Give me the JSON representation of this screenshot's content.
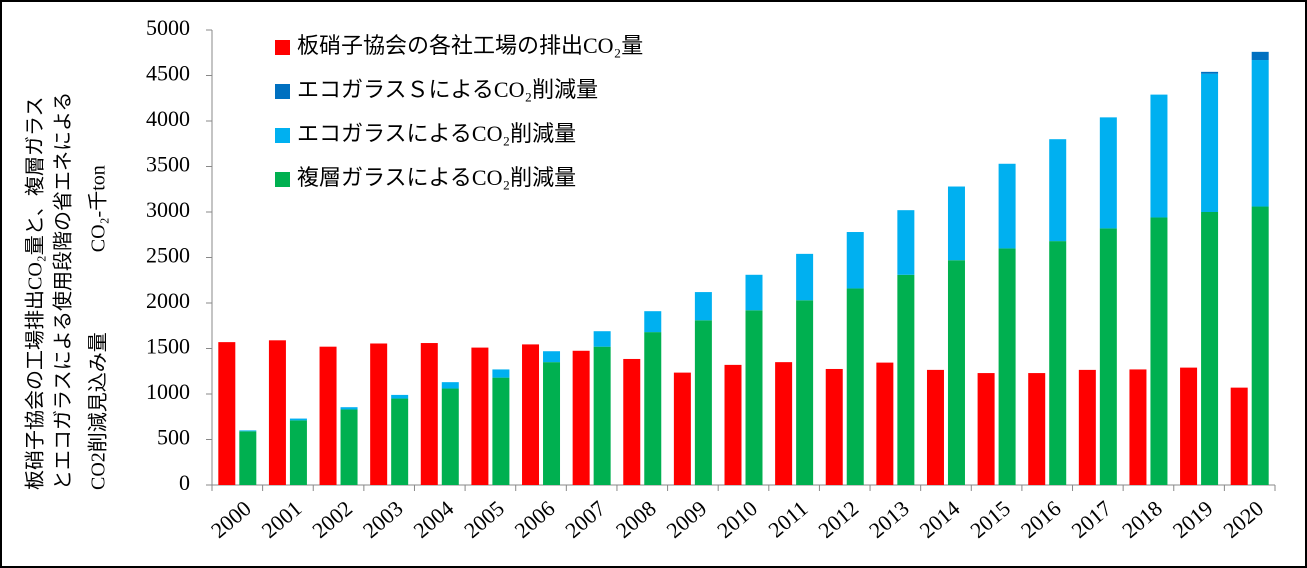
{
  "chart_data": {
    "type": "bar",
    "ylabel": [
      "板硝子協会の工場排出CO₂量と、複層ガラス",
      "とエコガラスによる使用段階の省エネによる",
      "CO2削減見込み量　　　　CO₂-千ton"
    ],
    "categories": [
      "2000",
      "2001",
      "2002",
      "2003",
      "2004",
      "2005",
      "2006",
      "2007",
      "2008",
      "2009",
      "2010",
      "2011",
      "2012",
      "2013",
      "2014",
      "2015",
      "2016",
      "2017",
      "2018",
      "2019",
      "2020"
    ],
    "series": [
      {
        "name": "板硝子協会の各社工場の排出CO₂量",
        "color": "#ff0000",
        "stacked": false,
        "values": [
          1570,
          1590,
          1520,
          1555,
          1560,
          1510,
          1545,
          1475,
          1385,
          1235,
          1320,
          1350,
          1275,
          1345,
          1265,
          1230,
          1230,
          1265,
          1270,
          1290,
          1070
        ]
      },
      {
        "name": "エコガラスＳによるCO₂削減量",
        "color": "#0070c0",
        "stacked": true,
        "values": [
          0,
          0,
          0,
          0,
          0,
          0,
          0,
          0,
          0,
          0,
          0,
          0,
          0,
          0,
          0,
          0,
          0,
          0,
          0,
          20,
          90
        ]
      },
      {
        "name": "エコガラスによるCO₂削減量",
        "color": "#00b0f0",
        "stacked": true,
        "values": [
          10,
          20,
          25,
          40,
          70,
          90,
          120,
          170,
          230,
          310,
          390,
          510,
          620,
          710,
          810,
          930,
          1120,
          1220,
          1350,
          1520,
          1610
        ]
      },
      {
        "name": "複層ガラスによるCO₂削減量",
        "color": "#00b050",
        "stacked": true,
        "values": [
          590,
          710,
          830,
          950,
          1060,
          1180,
          1350,
          1520,
          1680,
          1810,
          1920,
          2030,
          2160,
          2310,
          2470,
          2600,
          2680,
          2820,
          2940,
          3000,
          3060
        ]
      }
    ],
    "ylim": [
      0,
      5000
    ],
    "yticks": [
      0,
      500,
      1000,
      1500,
      2000,
      2500,
      3000,
      3500,
      4000,
      4500,
      5000
    ],
    "grid": false,
    "legend": "upper-left"
  }
}
